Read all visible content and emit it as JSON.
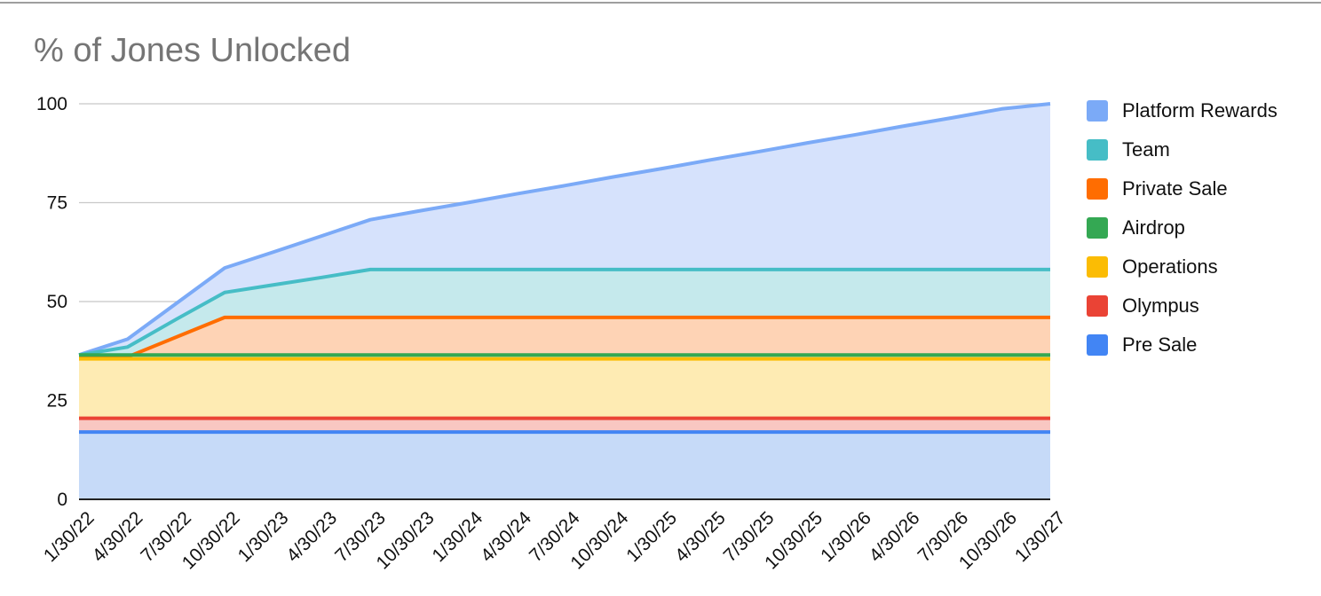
{
  "chart_data": {
    "type": "area",
    "title": "% of Jones Unlocked",
    "stacked": false,
    "x": [
      "1/30/22",
      "4/30/22",
      "7/30/22",
      "10/30/22",
      "1/30/23",
      "4/30/23",
      "7/30/23",
      "10/30/23",
      "1/30/24",
      "4/30/24",
      "7/30/24",
      "10/30/24",
      "1/30/25",
      "4/30/25",
      "7/30/25",
      "10/30/25",
      "1/30/26",
      "4/30/26",
      "7/30/26",
      "10/30/26",
      "1/30/27"
    ],
    "ylim": [
      0,
      100
    ],
    "yticks": [
      0,
      25,
      50,
      75,
      100
    ],
    "grid": true,
    "legend_position": "right",
    "series": [
      {
        "name": "Platform Rewards",
        "color": "#7baaf7",
        "fill": "#d6e2fc",
        "values": [
          36.5,
          40.5,
          49.5,
          58.5,
          62.5,
          66.6,
          70.7,
          72.9,
          75.0,
          77.2,
          79.3,
          81.5,
          83.6,
          85.8,
          87.9,
          90.1,
          92.2,
          94.4,
          96.5,
          98.7,
          100
        ]
      },
      {
        "name": "Team",
        "color": "#46bdc6",
        "fill": "#c5e9ec",
        "values": [
          36.5,
          38.5,
          45.5,
          52.3,
          54.2,
          56.1,
          58.1,
          58.1,
          58.1,
          58.1,
          58.1,
          58.1,
          58.1,
          58.1,
          58.1,
          58.1,
          58.1,
          58.1,
          58.1,
          58.1,
          58.1
        ]
      },
      {
        "name": "Private Sale",
        "color": "#ff6d01",
        "fill": "#fed3b5",
        "values": [
          36.0,
          36.0,
          41.0,
          46.0,
          46.0,
          46.0,
          46.0,
          46.0,
          46.0,
          46.0,
          46.0,
          46.0,
          46.0,
          46.0,
          46.0,
          46.0,
          46.0,
          46.0,
          46.0,
          46.0,
          46.0
        ]
      },
      {
        "name": "Airdrop",
        "color": "#34a853",
        "fill": "#cfe9d2",
        "values": [
          36.5,
          36.5,
          36.5,
          36.5,
          36.5,
          36.5,
          36.5,
          36.5,
          36.5,
          36.5,
          36.5,
          36.5,
          36.5,
          36.5,
          36.5,
          36.5,
          36.5,
          36.5,
          36.5,
          36.5,
          36.5
        ]
      },
      {
        "name": "Operations",
        "color": "#fbbc04",
        "fill": "#feebb3",
        "values": [
          35.5,
          35.5,
          35.5,
          35.5,
          35.5,
          35.5,
          35.5,
          35.5,
          35.5,
          35.5,
          35.5,
          35.5,
          35.5,
          35.5,
          35.5,
          35.5,
          35.5,
          35.5,
          35.5,
          35.5,
          35.5
        ]
      },
      {
        "name": "Olympus",
        "color": "#ea4335",
        "fill": "#f9c7c2",
        "values": [
          20.5,
          20.5,
          20.5,
          20.5,
          20.5,
          20.5,
          20.5,
          20.5,
          20.5,
          20.5,
          20.5,
          20.5,
          20.5,
          20.5,
          20.5,
          20.5,
          20.5,
          20.5,
          20.5,
          20.5,
          20.5
        ]
      },
      {
        "name": "Pre Sale",
        "color": "#4285f4",
        "fill": "#c6daf8",
        "values": [
          17,
          17,
          17,
          17,
          17,
          17,
          17,
          17,
          17,
          17,
          17,
          17,
          17,
          17,
          17,
          17,
          17,
          17,
          17,
          17,
          17
        ]
      }
    ]
  }
}
